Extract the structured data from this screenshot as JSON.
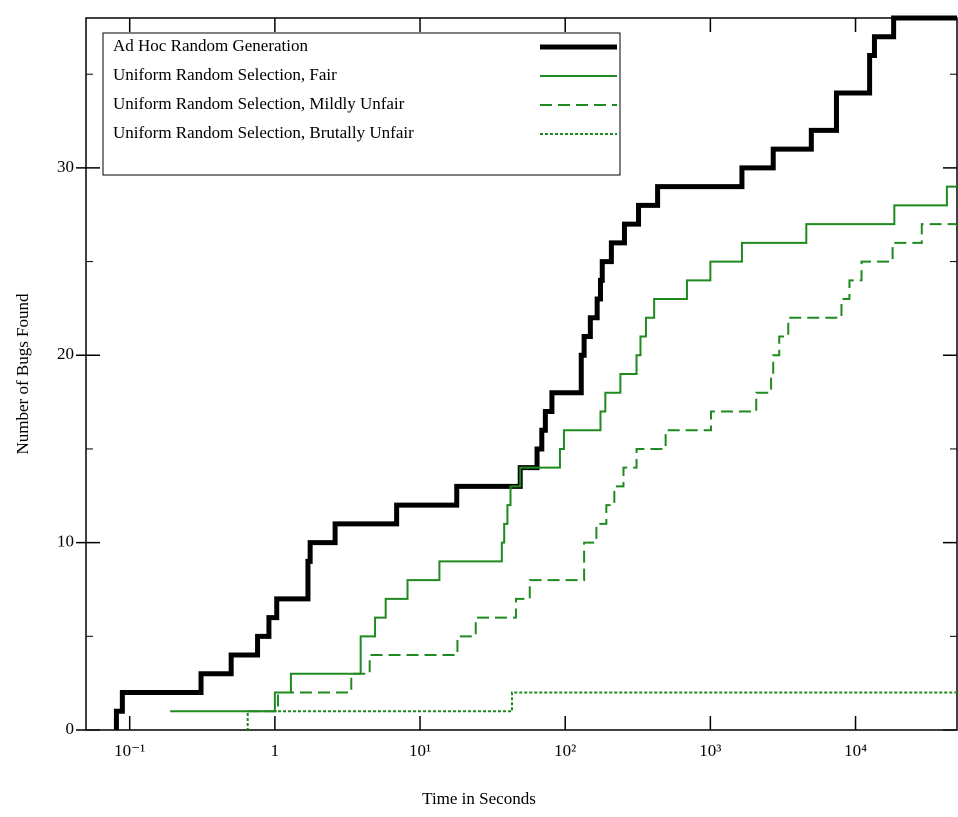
{
  "chart_data": {
    "type": "step",
    "xlabel": "Time in Seconds",
    "ylabel": "Number of Bugs Found",
    "xscale": "log",
    "xlim": [
      0.05,
      50000
    ],
    "xticks": [
      {
        "value": 0.1,
        "label": "10⁻¹"
      },
      1,
      {
        "value": 10,
        "label": "10¹"
      },
      {
        "value": 100,
        "label": "10²"
      },
      {
        "value": 1000,
        "label": "10³"
      },
      {
        "value": 10000,
        "label": "10⁴"
      }
    ],
    "ylim": [
      0,
      38
    ],
    "yticks": [
      0,
      10,
      20,
      30
    ],
    "yticks_minor": [
      5,
      15,
      25,
      35
    ],
    "legend": "top-left",
    "series": [
      {
        "name": "Ad Hoc Random Generation",
        "color": "#000000",
        "style": "solid",
        "line_width": 5,
        "x": [
          0.08,
          0.081,
          0.089,
          0.31,
          0.5,
          0.76,
          0.91,
          1.03,
          1.69,
          1.75,
          2.6,
          6.9,
          17.9,
          49,
          64,
          69,
          73,
          81,
          129,
          135,
          149,
          166,
          175,
          180,
          208,
          256,
          320,
          433,
          1650,
          2710,
          4960,
          7390,
          12500,
          13500,
          18300,
          50000
        ],
        "values": [
          0,
          1,
          2,
          3,
          4,
          5,
          6,
          7,
          9,
          10,
          11,
          12,
          13,
          14,
          15,
          16,
          17,
          18,
          20,
          21,
          22,
          23,
          24,
          25,
          26,
          27,
          28,
          29,
          30,
          31,
          32,
          34,
          36,
          37,
          38,
          38
        ]
      },
      {
        "name": "Uniform Random Selection, Fair",
        "color": "#1f8a1f",
        "style": "solid",
        "line_width": 2,
        "x": [
          0.19,
          1.0,
          1.29,
          3.9,
          4.9,
          5.8,
          8.2,
          13.6,
          36.6,
          38,
          40,
          42,
          49,
          92,
          98,
          175,
          189,
          240,
          310,
          330,
          360,
          410,
          690,
          1000,
          1650,
          4580,
          18500,
          42600,
          50000
        ],
        "values": [
          1,
          2,
          3,
          5,
          6,
          7,
          8,
          9,
          10,
          11,
          12,
          13,
          14,
          15,
          16,
          17,
          18,
          19,
          20,
          21,
          22,
          23,
          24,
          25,
          26,
          27,
          28,
          29,
          29
        ]
      },
      {
        "name": "Uniform Random Selection, Mildly Unfair",
        "color": "#1f8a1f",
        "style": "dashed",
        "line_width": 2,
        "x": [
          0.64,
          1.05,
          3.36,
          4.5,
          18.1,
          24.2,
          45.8,
          57,
          135,
          164,
          192,
          218,
          252,
          310,
          492,
          1010,
          2070,
          2620,
          2710,
          2980,
          3440,
          8000,
          9080,
          11000,
          18000,
          28600,
          50000
        ],
        "values": [
          1,
          2,
          3,
          4,
          5,
          6,
          7,
          8,
          10,
          11,
          12,
          13,
          14,
          15,
          16,
          17,
          18,
          19,
          20,
          21,
          22,
          23,
          24,
          25,
          26,
          27,
          27
        ]
      },
      {
        "name": "Uniform Random Selection, Brutally Unfair",
        "color": "#1f8a1f",
        "style": "dotted",
        "line_width": 2,
        "x": [
          0.64,
          0.65,
          43,
          50000
        ],
        "values": [
          0,
          1,
          2,
          2
        ]
      }
    ]
  }
}
